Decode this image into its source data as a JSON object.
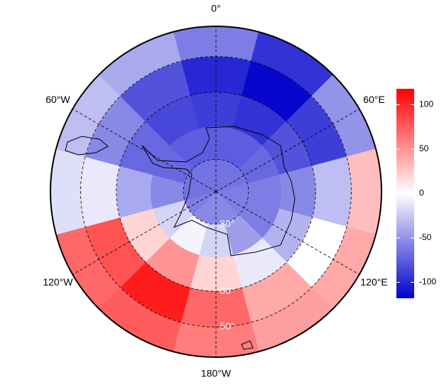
{
  "chart_data": {
    "type": "polar-heatmap",
    "lon_centers": [
      0,
      30,
      60,
      90,
      120,
      150,
      180,
      210,
      240,
      270,
      300,
      330
    ],
    "lat_edges": [
      -90,
      -80,
      -70,
      -60,
      -50,
      -42
    ],
    "values": [
      [
        -65,
        -65,
        -65,
        -60,
        -60,
        -55,
        -55,
        -55,
        -60,
        -65,
        -65,
        -65
      ],
      [
        -75,
        -75,
        -70,
        -60,
        -60,
        -45,
        -20,
        -5,
        -20,
        -55,
        -70,
        -75
      ],
      [
        -90,
        -95,
        -80,
        -55,
        -35,
        -10,
        20,
        50,
        20,
        -40,
        -70,
        -85
      ],
      [
        -100,
        -115,
        -90,
        -30,
        0,
        40,
        70,
        105,
        80,
        -10,
        -55,
        -80
      ],
      [
        -60,
        -95,
        -50,
        30,
        40,
        45,
        60,
        75,
        70,
        -15,
        -30,
        -40
      ]
    ],
    "colors": [
      "#0000cc",
      "#ffffff",
      "#ff0000"
    ],
    "clim": [
      -118,
      118
    ],
    "cticks": [
      100,
      50,
      0,
      -50,
      -100
    ],
    "lon_ticks": [
      {
        "value": 0,
        "label": "0°"
      },
      {
        "value": 60,
        "label": "60°E"
      },
      {
        "value": 120,
        "label": "120°E"
      },
      {
        "value": 180,
        "label": "180°W"
      },
      {
        "value": -120,
        "label": "120°W"
      },
      {
        "value": -60,
        "label": "60°W"
      }
    ],
    "lat_ticks": [
      {
        "value": -80,
        "label": "80°"
      },
      {
        "value": -60,
        "label": "60°"
      },
      {
        "value": -50,
        "label": "50°"
      }
    ]
  }
}
